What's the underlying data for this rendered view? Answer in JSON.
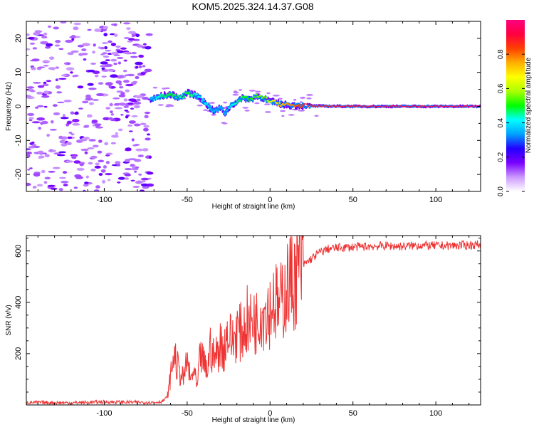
{
  "title": "KOM5.2025.324.14.37.G08",
  "chart_data": [
    {
      "type": "heatmap",
      "id": "spectrogram",
      "xlabel": "Height of straight line (km)",
      "ylabel": "Frequency (Hz)",
      "xlim": [
        -147,
        127
      ],
      "ylim": [
        -25,
        25
      ],
      "xticks": [
        -100,
        -50,
        0,
        50,
        100
      ],
      "yticks": [
        -20,
        -10,
        0,
        10,
        20
      ],
      "colorbar": {
        "label": "Normalized spectral amplitude",
        "range": [
          0,
          1
        ],
        "ticks": [
          0.0,
          0.2,
          0.4,
          0.6,
          0.8
        ],
        "colors": [
          "#ffffff",
          "#cc99ff",
          "#7a00ff",
          "#2200ff",
          "#00a0ff",
          "#00ffff",
          "#00ff00",
          "#aaff00",
          "#ffff00",
          "#ffb000",
          "#ff4000",
          "#ff0040",
          "#ff0080"
        ]
      },
      "noise_region_x": [
        -147,
        -72
      ],
      "ridge": {
        "x": [
          -72,
          -66,
          -60,
          -54,
          -50,
          -46,
          -42,
          -38,
          -34,
          -30,
          -27,
          -24,
          -20,
          -16,
          -12,
          -8,
          -4,
          0,
          4,
          8,
          14,
          20,
          30,
          50,
          70,
          90,
          110,
          127
        ],
        "frequency": [
          2,
          3,
          3.5,
          2.5,
          4,
          3.5,
          2.5,
          0.5,
          -1.5,
          -0.5,
          -2,
          0,
          1.5,
          2.5,
          2,
          3,
          2.5,
          1.5,
          1,
          0.5,
          0.3,
          0.2,
          0.1,
          0,
          0,
          0,
          0,
          0
        ],
        "amplitude": [
          0.35,
          0.45,
          0.5,
          0.45,
          0.5,
          0.45,
          0.4,
          0.4,
          0.35,
          0.35,
          0.35,
          0.4,
          0.45,
          0.5,
          0.5,
          0.55,
          0.55,
          0.6,
          0.7,
          0.75,
          0.8,
          0.85,
          0.88,
          0.9,
          0.92,
          0.92,
          0.93,
          0.95
        ]
      }
    },
    {
      "type": "line",
      "id": "snr",
      "xlabel": "Height of straight line (km)",
      "ylabel": "SNR (v/v)",
      "xlim": [
        -147,
        127
      ],
      "ylim": [
        0,
        660
      ],
      "xticks": [
        -100,
        -50,
        0,
        50,
        100
      ],
      "yticks": [
        200,
        400,
        600
      ],
      "color": "#ee3333",
      "series": [
        {
          "name": "SNR",
          "x": [
            -147,
            -120,
            -100,
            -80,
            -70,
            -65,
            -62,
            -60,
            -58,
            -56,
            -54,
            -52,
            -50,
            -48,
            -46,
            -44,
            -42,
            -40,
            -38,
            -36,
            -34,
            -32,
            -30,
            -28,
            -26,
            -24,
            -22,
            -20,
            -18,
            -16,
            -14,
            -12,
            -10,
            -8,
            -6,
            -4,
            -2,
            0,
            2,
            4,
            6,
            8,
            10,
            12,
            14,
            16,
            18,
            20,
            25,
            30,
            35,
            40,
            50,
            60,
            70,
            80,
            90,
            100,
            110,
            120,
            127
          ],
          "values": [
            10,
            8,
            12,
            10,
            10,
            14,
            30,
            110,
            200,
            150,
            120,
            100,
            180,
            90,
            140,
            60,
            200,
            160,
            130,
            230,
            180,
            200,
            240,
            210,
            280,
            260,
            250,
            300,
            280,
            290,
            330,
            310,
            340,
            320,
            380,
            360,
            390,
            370,
            420,
            390,
            380,
            430,
            460,
            480,
            490,
            510,
            530,
            545,
            570,
            595,
            608,
            612,
            615,
            618,
            620,
            618,
            622,
            620,
            621,
            623,
            625
          ]
        }
      ]
    }
  ]
}
